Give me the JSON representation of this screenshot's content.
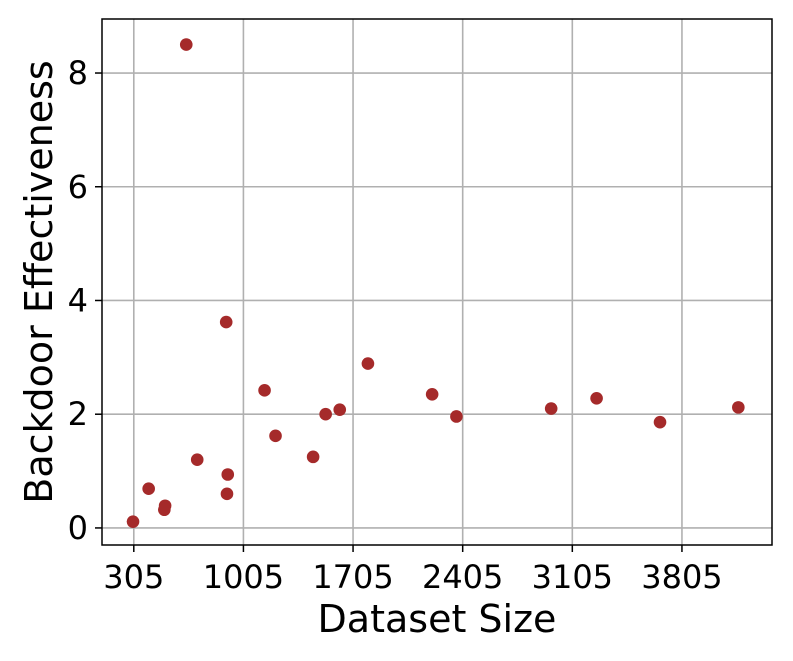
{
  "chart_data": {
    "type": "scatter",
    "xlabel": "Dataset Size",
    "ylabel": "Backdoor Effectiveness",
    "xlim": [
      102,
      4380
    ],
    "ylim": [
      -0.3,
      8.95
    ],
    "xticks": [
      305,
      1005,
      1705,
      2405,
      3105,
      3805
    ],
    "yticks": [
      0,
      2,
      4,
      6,
      8
    ],
    "grid": true,
    "marker_color": "#a52a2a",
    "points": [
      {
        "x": 300,
        "y": 0.11
      },
      {
        "x": 400,
        "y": 0.69
      },
      {
        "x": 500,
        "y": 0.32
      },
      {
        "x": 505,
        "y": 0.39
      },
      {
        "x": 640,
        "y": 8.5
      },
      {
        "x": 710,
        "y": 1.2
      },
      {
        "x": 895,
        "y": 3.62
      },
      {
        "x": 900,
        "y": 0.6
      },
      {
        "x": 905,
        "y": 0.94
      },
      {
        "x": 1140,
        "y": 2.42
      },
      {
        "x": 1210,
        "y": 1.62
      },
      {
        "x": 1450,
        "y": 1.25
      },
      {
        "x": 1530,
        "y": 2.0
      },
      {
        "x": 1620,
        "y": 2.08
      },
      {
        "x": 1800,
        "y": 2.89
      },
      {
        "x": 2210,
        "y": 2.35
      },
      {
        "x": 2365,
        "y": 1.96
      },
      {
        "x": 2970,
        "y": 2.1
      },
      {
        "x": 3260,
        "y": 2.28
      },
      {
        "x": 3665,
        "y": 1.86
      },
      {
        "x": 4165,
        "y": 2.12
      }
    ]
  }
}
